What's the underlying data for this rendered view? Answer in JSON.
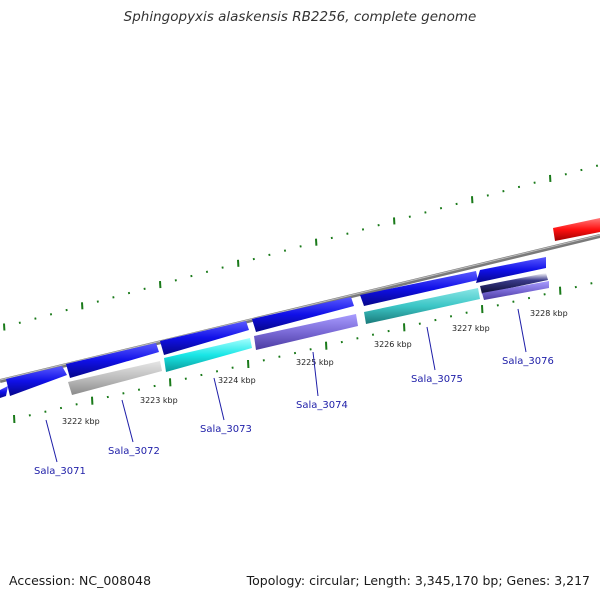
{
  "title": "Sphingopyxis alaskensis RB2256, complete genome",
  "footer": {
    "accession": "Accession: NC_008048",
    "summary": "Topology: circular; Length: 3,345,170 bp; Genes: 3,217"
  },
  "scale_labels": [
    "3222 kbp",
    "3223 kbp",
    "3224 kbp",
    "3225 kbp",
    "3226 kbp",
    "3227 kbp",
    "3228 kbp"
  ],
  "gene_labels": [
    "Sala_3071",
    "Sala_3072",
    "Sala_3073",
    "Sala_3074",
    "Sala_3075",
    "Sala_3076"
  ],
  "colors": {
    "forward_cds": "#1010e8",
    "rna_gene": "#ff1a1a",
    "backbone": "#7a7a7a",
    "tick": "#1a7a1a",
    "label": "#1e1ea8",
    "reverse_gray": "#bdbdbd",
    "reverse_cyan": "#19e6e6",
    "reverse_purple": "#7a6ad6",
    "reverse_teal": "#3cc6c6"
  }
}
